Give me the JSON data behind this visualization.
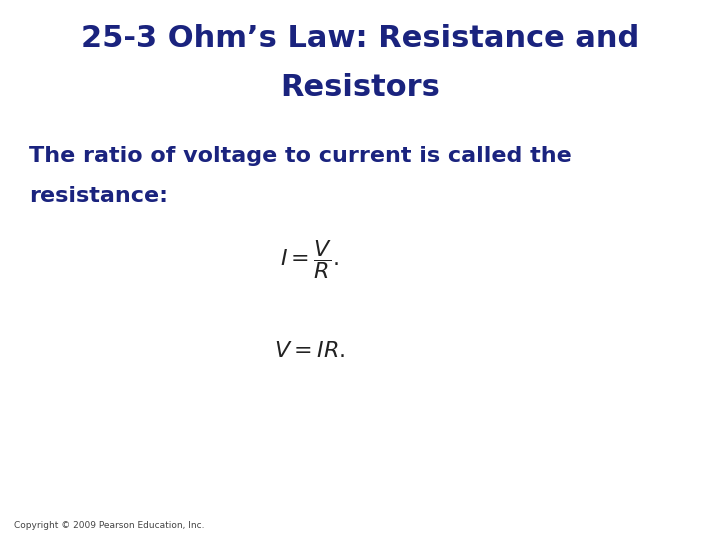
{
  "title_line1": "25-3 Ohm’s Law: Resistance and",
  "title_line2": "Resistors",
  "body_text_line1": "The ratio of voltage to current is called the",
  "body_text_line2": "resistance:",
  "formula1": "$I = \\dfrac{V}{R}.$",
  "formula2": "$V = IR.$",
  "copyright": "Copyright © 2009 Pearson Education, Inc.",
  "title_color": "#1a237e",
  "body_color": "#1a237e",
  "formula_color": "#222222",
  "copyright_color": "#444444",
  "bg_color": "#ffffff",
  "title_fontsize": 22,
  "body_fontsize": 16,
  "formula1_fontsize": 16,
  "formula2_fontsize": 16,
  "copyright_fontsize": 6.5
}
